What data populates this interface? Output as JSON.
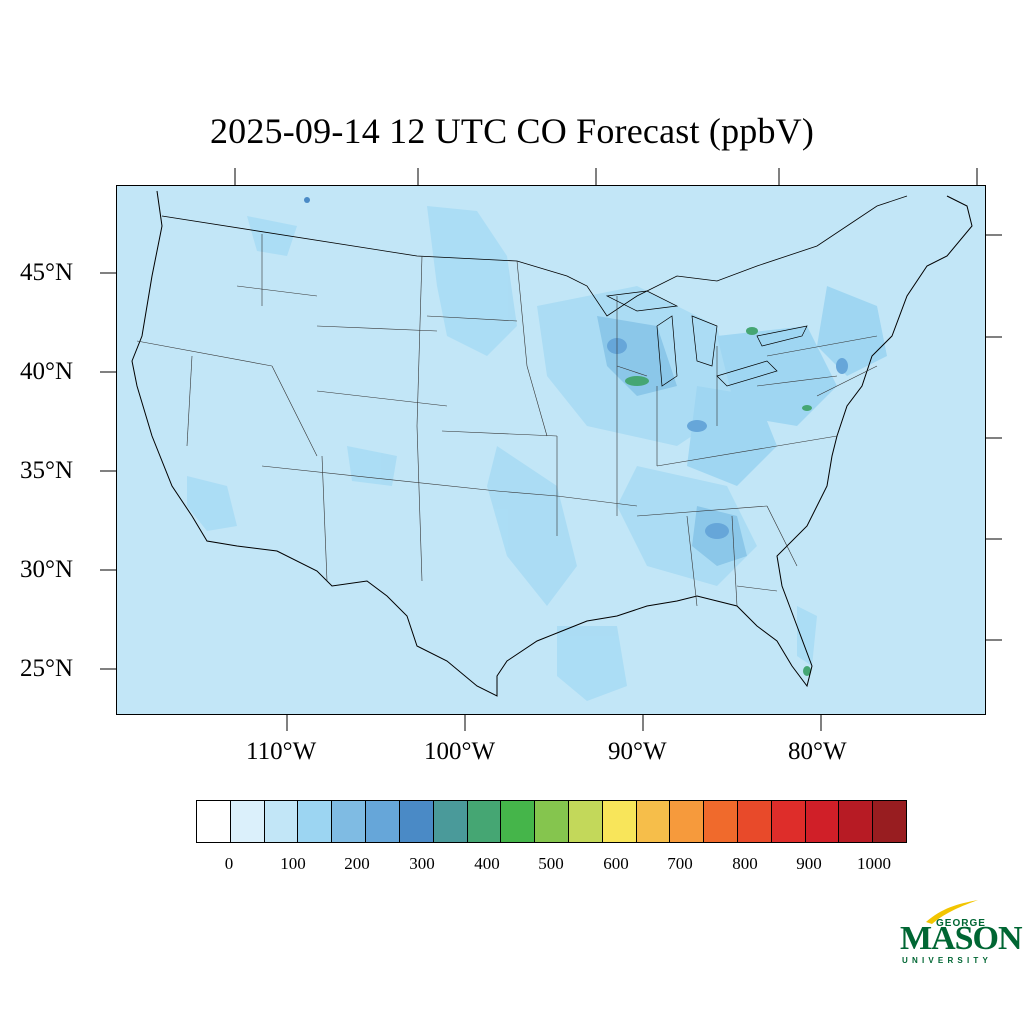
{
  "title": "2025-09-14 12 UTC CO Forecast (ppbV)",
  "map": {
    "lat_labels": [
      "45°N",
      "40°N",
      "35°N",
      "30°N",
      "25°N"
    ],
    "lon_labels": [
      "110°W",
      "100°W",
      "90°W",
      "80°W"
    ],
    "background_color": "#c2e6f7",
    "outline_color": "#000000"
  },
  "colorbar": {
    "colors": [
      "#ffffff",
      "#dbf0fb",
      "#c2e6f7",
      "#9cd5f2",
      "#7fbbe3",
      "#66a6d9",
      "#4a8ac6",
      "#4a9a9a",
      "#45a673",
      "#45b54a",
      "#85c54e",
      "#c3d85a",
      "#f8e55a",
      "#f6be4a",
      "#f69a3c",
      "#f06a2c",
      "#e84a2a",
      "#de2d2a",
      "#d01f28",
      "#b71b24",
      "#981d20"
    ],
    "labels": [
      "0",
      "100",
      "200",
      "300",
      "400",
      "500",
      "600",
      "700",
      "800",
      "900",
      "1000"
    ]
  },
  "logo": {
    "line1": "GEORGE",
    "line2": "MASON",
    "line3": "UNIVERSITY",
    "color": "#006633",
    "accent": "#f2c500"
  }
}
